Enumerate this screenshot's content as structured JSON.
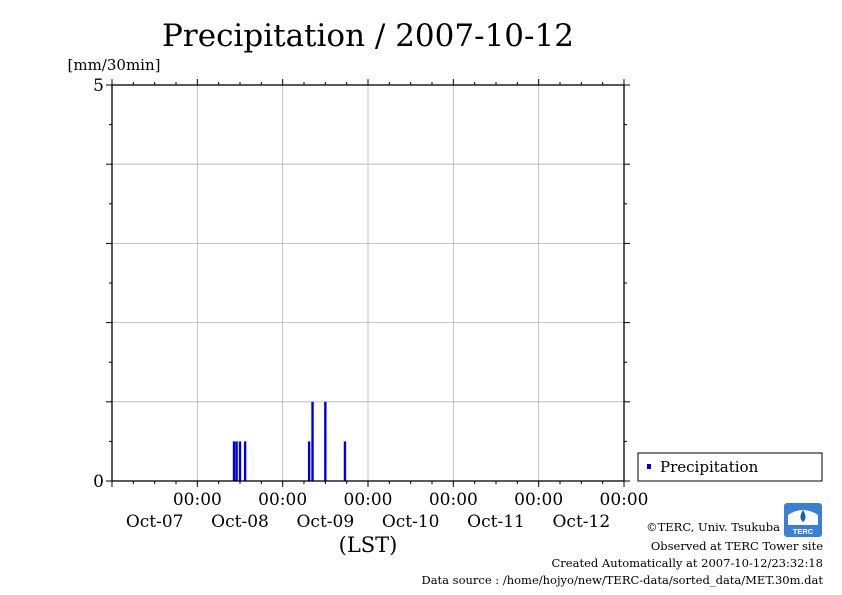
{
  "chart_data": {
    "type": "bar",
    "title": "Precipitation / 2007-10-12",
    "ylabel": "[mm/30min]",
    "xlabel": "(LST)",
    "ylim": [
      0,
      5
    ],
    "y_ticks": [
      "0",
      "5"
    ],
    "x_tick_labels": [
      {
        "time": "00:00",
        "date": "Oct-07"
      },
      {
        "time": "00:00",
        "date": "Oct-08"
      },
      {
        "time": "00:00",
        "date": "Oct-09"
      },
      {
        "time": "00:00",
        "date": "Oct-10"
      },
      {
        "time": "00:00",
        "date": "Oct-11"
      },
      {
        "time": "00:00",
        "date": "Oct-12"
      }
    ],
    "x_range_days": [
      -1.0,
      5.0
    ],
    "grid": true,
    "legend_position": "right",
    "series": [
      {
        "name": "Precipitation",
        "color": "#0000cc",
        "points": [
          {
            "x": 0.43,
            "y": 0.5
          },
          {
            "x": 0.46,
            "y": 0.5
          },
          {
            "x": 0.5,
            "y": 0.5
          },
          {
            "x": 0.56,
            "y": 0.5
          },
          {
            "x": 1.31,
            "y": 0.5
          },
          {
            "x": 1.35,
            "y": 1.0
          },
          {
            "x": 1.5,
            "y": 1.0
          },
          {
            "x": 1.73,
            "y": 0.5
          }
        ]
      }
    ]
  },
  "credits": {
    "copyright": "©TERC, Univ. Tsukuba",
    "observed": "Observed at TERC Tower site",
    "created": "Created Automatically at 2007-10-12/23:32:18",
    "source": "Data source : /home/hojyo/new/TERC-data/sorted_data/MET.30m.dat",
    "logo_text": "TERC"
  }
}
